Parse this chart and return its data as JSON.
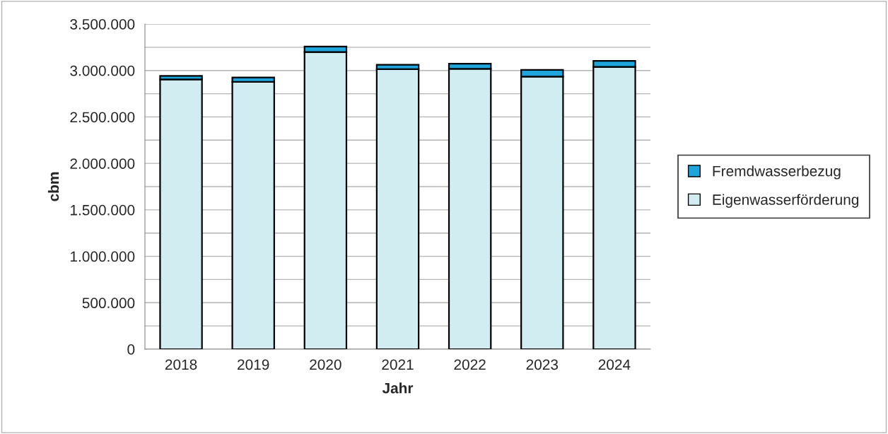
{
  "chart_data": {
    "type": "bar",
    "stacked": true,
    "xlabel": "Jahr",
    "ylabel": "cbm",
    "categories": [
      "2018",
      "2019",
      "2020",
      "2021",
      "2022",
      "2023",
      "2024"
    ],
    "series": [
      {
        "name": "Eigenwasserförderung",
        "color": "#d2edf2",
        "values": [
          2903000,
          2878000,
          3198000,
          3014000,
          3017000,
          2934000,
          3038000
        ]
      },
      {
        "name": "Fremdwasserbezug",
        "color": "#1ea5dc",
        "values": [
          38000,
          46000,
          59000,
          48000,
          56000,
          73000,
          66000
        ]
      }
    ],
    "ylim": [
      0,
      3500000
    ],
    "yticks": [
      {
        "value": 0,
        "label": "0"
      },
      {
        "value": 250000,
        "label": null
      },
      {
        "value": 500000,
        "label": "500.000"
      },
      {
        "value": 750000,
        "label": null
      },
      {
        "value": 1000000,
        "label": "1.000.000"
      },
      {
        "value": 1250000,
        "label": null
      },
      {
        "value": 1500000,
        "label": "1.500.000"
      },
      {
        "value": 1750000,
        "label": null
      },
      {
        "value": 2000000,
        "label": "2.000.000"
      },
      {
        "value": 2250000,
        "label": null
      },
      {
        "value": 2500000,
        "label": "2.500.000"
      },
      {
        "value": 2750000,
        "label": null
      },
      {
        "value": 3000000,
        "label": "3.000.000"
      },
      {
        "value": 3250000,
        "label": null
      },
      {
        "value": 3500000,
        "label": "3.500.000"
      }
    ],
    "grid": "y",
    "legend": "right"
  }
}
